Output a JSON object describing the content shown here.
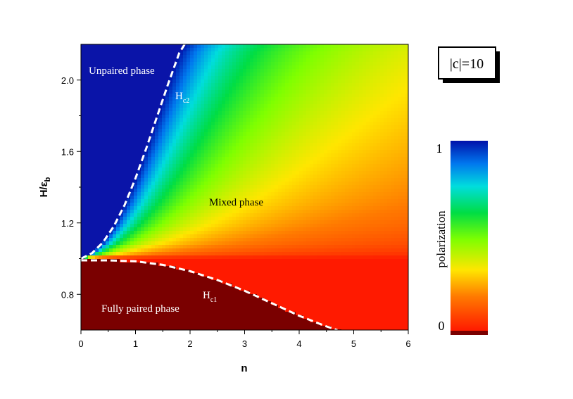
{
  "chart_data": {
    "type": "heatmap",
    "title": "",
    "xlabel": "n",
    "ylabel_main": "H/ε",
    "ylabel_sub": "b",
    "xlim": [
      0,
      6
    ],
    "ylim": [
      0.6,
      2.2
    ],
    "x_ticks": [
      "0",
      "1",
      "2",
      "3",
      "4",
      "5",
      "6"
    ],
    "y_ticks": [
      "0.8",
      "1.2",
      "1.6",
      "2.0"
    ],
    "x_tick_values": [
      0,
      1,
      2,
      3,
      4,
      5,
      6
    ],
    "y_tick_values": [
      0.8,
      1.2,
      1.6,
      2.0
    ],
    "legend_box": "|c|=10",
    "colorbar": {
      "label": "polarization",
      "max_label": "1",
      "min_label": "0",
      "range": [
        0,
        1
      ]
    },
    "region_labels": {
      "unpaired": "Unpaired phase",
      "mixed": "Mixed phase",
      "fully_paired": "Fully paired phase"
    },
    "curve_labels": {
      "hc2_main": "H",
      "hc2_sub": "c2",
      "hc1_main": "H",
      "hc1_sub": "c1"
    },
    "hc2_curve": {
      "x": [
        0.0,
        0.2,
        0.4,
        0.6,
        0.8,
        1.0,
        1.2,
        1.4,
        1.6,
        1.8,
        1.9
      ],
      "y": [
        1.0,
        1.03,
        1.09,
        1.18,
        1.3,
        1.45,
        1.62,
        1.8,
        1.98,
        2.15,
        2.2
      ]
    },
    "hc1_curve": {
      "x": [
        0.0,
        0.5,
        1.0,
        1.5,
        2.0,
        2.5,
        3.0,
        3.5,
        4.0,
        4.5,
        4.7
      ],
      "y": [
        0.99,
        0.99,
        0.985,
        0.965,
        0.93,
        0.88,
        0.82,
        0.75,
        0.68,
        0.62,
        0.6
      ]
    },
    "grid": false
  }
}
